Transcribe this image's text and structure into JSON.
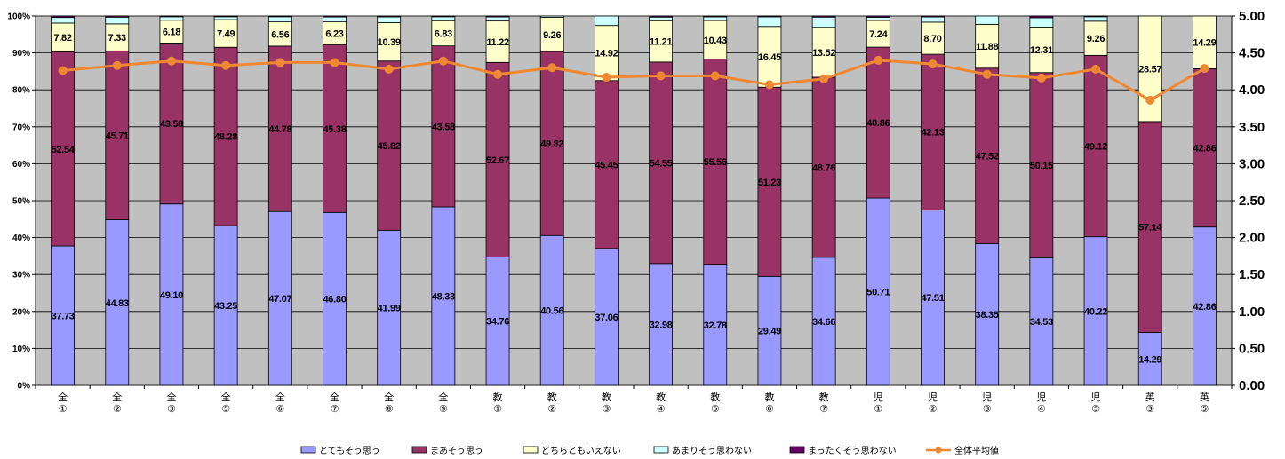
{
  "chart_data": {
    "type": "bar",
    "stacked": true,
    "categories": [
      "全\n①",
      "全\n②",
      "全\n③",
      "全\n⑤",
      "全\n⑥",
      "全\n⑦",
      "全\n⑧",
      "全\n⑨",
      "教\n①",
      "教\n②",
      "教\n③",
      "教\n④",
      "教\n⑤",
      "教\n⑥",
      "教\n⑦",
      "児\n①",
      "児\n②",
      "児\n③",
      "児\n④",
      "児\n⑤",
      "英\n③",
      "英\n⑤"
    ],
    "y_left": {
      "ylim": [
        0,
        100
      ],
      "ticks": [
        "0%",
        "10%",
        "20%",
        "30%",
        "40%",
        "50%",
        "60%",
        "70%",
        "80%",
        "90%",
        "100%"
      ]
    },
    "y_right": {
      "ylim": [
        0,
        5
      ],
      "ticks": [
        "0.00",
        "0.50",
        "1.00",
        "1.50",
        "2.00",
        "2.50",
        "3.00",
        "3.50",
        "4.00",
        "4.50",
        "5.00"
      ]
    },
    "grid": true,
    "legend_position": "bottom",
    "series": [
      {
        "name": "とてもそう思う",
        "color": "#9999ff",
        "values": [
          37.73,
          44.83,
          49.1,
          43.25,
          47.07,
          46.8,
          41.99,
          48.33,
          34.76,
          40.56,
          37.06,
          32.98,
          32.78,
          29.49,
          34.66,
          50.71,
          47.51,
          38.35,
          34.53,
          40.22,
          14.29,
          42.86
        ],
        "labels": [
          "37.73",
          "44.83",
          "49.10",
          "43.25",
          "47.07",
          "46.80",
          "41.99",
          "48.33",
          "34.76",
          "40.56",
          "37.06",
          "32.98",
          "32.78",
          "29.49",
          "34.66",
          "50.71",
          "47.51",
          "38.35",
          "34.53",
          "40.22",
          "14.29",
          "42.86"
        ]
      },
      {
        "name": "まあそう思う",
        "color": "#993366",
        "values": [
          52.54,
          45.71,
          43.58,
          48.28,
          44.78,
          45.38,
          45.82,
          43.58,
          52.67,
          49.82,
          45.45,
          54.55,
          55.56,
          51.23,
          48.76,
          40.86,
          42.13,
          47.52,
          50.15,
          49.12,
          57.14,
          42.86
        ],
        "labels": [
          "52.54",
          "45.71",
          "43.58",
          "48.28",
          "44.78",
          "45.38",
          "45.82",
          "43.58",
          "52.67",
          "49.82",
          "45.45",
          "54.55",
          "55.56",
          "51.23",
          "48.76",
          "40.86",
          "42.13",
          "47.52",
          "50.15",
          "49.12",
          "57.14",
          "42.86"
        ]
      },
      {
        "name": "どちらともいえない",
        "color": "#ffffcc",
        "values": [
          7.82,
          7.33,
          6.18,
          7.49,
          6.56,
          6.23,
          10.39,
          6.83,
          11.22,
          9.26,
          14.92,
          11.21,
          10.43,
          16.45,
          13.52,
          7.24,
          8.7,
          11.88,
          12.31,
          9.26,
          28.57,
          14.29
        ],
        "labels": [
          "7.82",
          "7.33",
          "6.18",
          "7.49",
          "6.56",
          "6.23",
          "10.39",
          "6.83",
          "11.22",
          "9.26",
          "14.92",
          "11.21",
          "10.43",
          "16.45",
          "13.52",
          "7.24",
          "8.70",
          "11.88",
          "12.31",
          "9.26",
          "28.57",
          "14.29"
        ]
      },
      {
        "name": "あまりそう思わない",
        "color": "#ccffff",
        "values": [
          1.51,
          1.82,
          0.94,
          0.78,
          1.39,
          1.32,
          1.55,
          1.06,
          1.1,
          0.36,
          2.57,
          0.96,
          1.0,
          2.61,
          2.76,
          0.86,
          1.4,
          2.25,
          2.54,
          1.2,
          0,
          0
        ]
      },
      {
        "name": "まったくそう思わない",
        "color": "#660066",
        "values": [
          0.4,
          0.31,
          0.2,
          0.2,
          0.2,
          0.27,
          0.25,
          0.2,
          0.25,
          0,
          0,
          0.3,
          0.23,
          0.22,
          0.3,
          0.33,
          0.26,
          0,
          0.47,
          0.2,
          0,
          0
        ]
      },
      {
        "name": "全体平均値",
        "type": "line",
        "axis": "right",
        "color": "#ee8833",
        "values": [
          4.26,
          4.33,
          4.39,
          4.33,
          4.37,
          4.37,
          4.28,
          4.39,
          4.21,
          4.3,
          4.17,
          4.19,
          4.19,
          4.07,
          4.15,
          4.4,
          4.35,
          4.21,
          4.16,
          4.28,
          3.86,
          4.29
        ]
      }
    ]
  }
}
